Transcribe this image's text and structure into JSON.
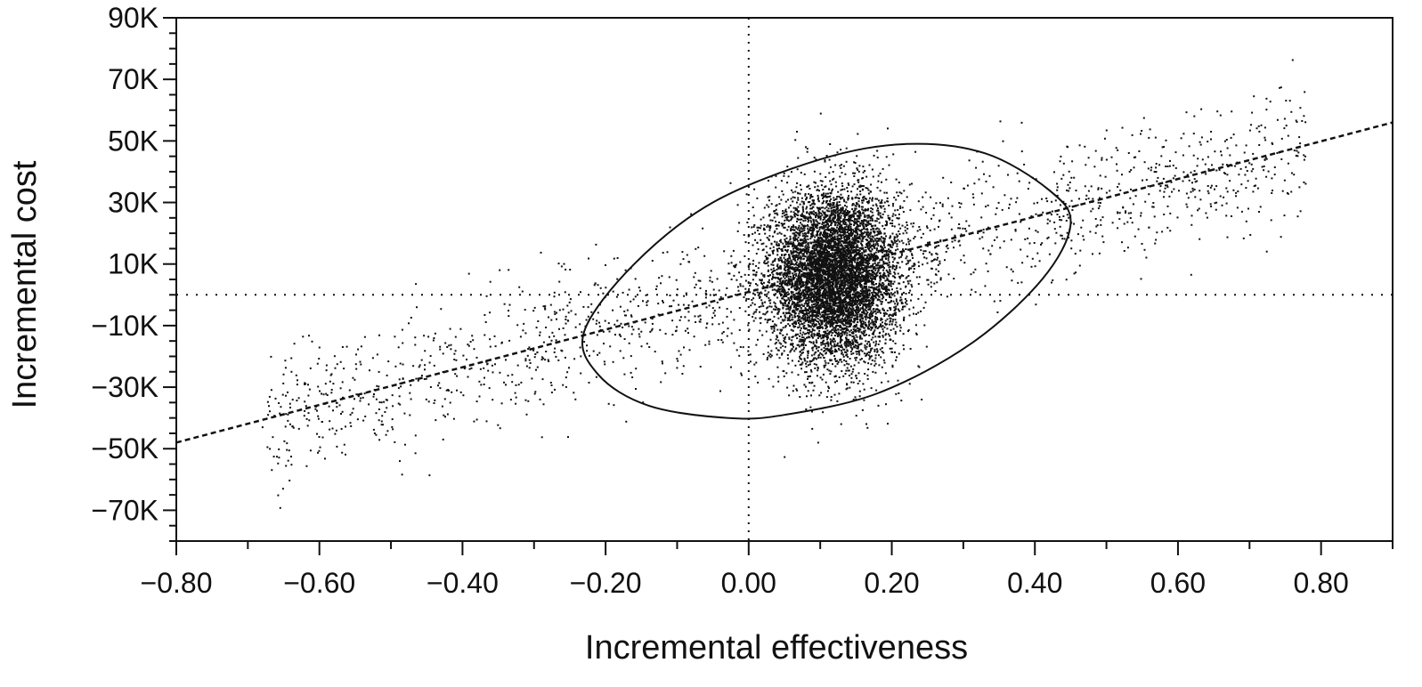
{
  "chart_data": {
    "type": "scatter",
    "xlabel": "Incremental effectiveness",
    "ylabel": "Incremental cost",
    "xlim": [
      -0.8,
      0.9
    ],
    "ylim": [
      -80000,
      90000
    ],
    "x_ticks": [
      -0.8,
      -0.6,
      -0.4,
      -0.2,
      0.0,
      0.2,
      0.4,
      0.6,
      0.8
    ],
    "x_tick_labels": [
      "−0.80",
      "−0.60",
      "−0.40",
      "−0.20",
      "0.00",
      "0.20",
      "0.40",
      "0.60",
      "0.80"
    ],
    "y_ticks": [
      90000,
      70000,
      50000,
      30000,
      10000,
      -10000,
      -30000,
      -50000,
      -70000
    ],
    "y_tick_labels": [
      "90K",
      "70K",
      "50K",
      "30K",
      "10K",
      "−10K",
      "−30K",
      "−50K",
      "−70K"
    ],
    "reference_lines": {
      "vertical_x": 0,
      "horizontal_y": 0,
      "style": "dotted"
    },
    "trend_line": {
      "style": "dashed",
      "points": [
        [
          -0.8,
          -48000
        ],
        [
          0.9,
          56000
        ]
      ]
    },
    "confidence_ellipse": {
      "center": [
        0.115,
        5000
      ],
      "x_extent": [
        -0.23,
        0.45
      ],
      "y_extent": [
        -40000,
        49000
      ],
      "approx_points": [
        [
          -0.23,
          -12000
        ],
        [
          -0.16,
          10000
        ],
        [
          -0.05,
          30000
        ],
        [
          0.1,
          44000
        ],
        [
          0.22,
          49000
        ],
        [
          0.33,
          46000
        ],
        [
          0.42,
          34000
        ],
        [
          0.45,
          23000
        ],
        [
          0.41,
          5000
        ],
        [
          0.31,
          -16000
        ],
        [
          0.18,
          -32000
        ],
        [
          0.05,
          -39000
        ],
        [
          -0.03,
          -40000
        ],
        [
          -0.14,
          -36000
        ],
        [
          -0.21,
          -26000
        ]
      ]
    },
    "scatter_clouds": [
      {
        "name": "",
        "n": 7000,
        "center": [
          0.12,
          6000
        ],
        "sd": [
          0.045,
          14000
        ],
        "trend": false
      },
      {
        "name": "",
        "n": 1700,
        "x_range": [
          -0.68,
          0.78
        ],
        "trend_residual_sd": 11000,
        "trend": true
      }
    ],
    "colors": {
      "background": "#ffffff",
      "ink": "#111111"
    }
  }
}
